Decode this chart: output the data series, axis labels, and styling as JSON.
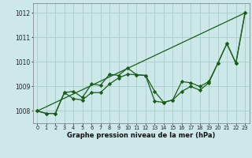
{
  "title": "Graphe pression niveau de la mer (hPa)",
  "background_color": "#cce8e8",
  "grid_color": "#aacccc",
  "line_color": "#1a5c1a",
  "xlim": [
    -0.5,
    23.5
  ],
  "ylim": [
    1007.5,
    1012.4
  ],
  "yticks": [
    1008,
    1009,
    1010,
    1011,
    1012
  ],
  "xticks": [
    0,
    1,
    2,
    3,
    4,
    5,
    6,
    7,
    8,
    9,
    10,
    11,
    12,
    13,
    14,
    15,
    16,
    17,
    18,
    19,
    20,
    21,
    22,
    23
  ],
  "trend_x": [
    0,
    23
  ],
  "trend_y": [
    1008.0,
    1012.0
  ],
  "line1_x": [
    0,
    1,
    2,
    3,
    4,
    5,
    6,
    7,
    8,
    9,
    10,
    11,
    12,
    13,
    14,
    15,
    16,
    17,
    18,
    19,
    20,
    21,
    22,
    23
  ],
  "line1_y": [
    1008.0,
    1007.9,
    1007.9,
    1008.75,
    1008.8,
    1008.55,
    1009.1,
    1009.05,
    1009.5,
    1009.45,
    1009.75,
    1009.48,
    1009.45,
    1008.4,
    1008.35,
    1008.45,
    1009.2,
    1009.15,
    1009.0,
    1009.2,
    1009.95,
    1010.75,
    1009.95,
    1012.0
  ],
  "line2_x": [
    0,
    1,
    2,
    3,
    4,
    5,
    6,
    7,
    8,
    9,
    10,
    11,
    12,
    13,
    14,
    15,
    16,
    17,
    18,
    19,
    20,
    21,
    22,
    23
  ],
  "line2_y": [
    1008.0,
    1007.9,
    1007.9,
    1008.75,
    1008.5,
    1008.45,
    1008.75,
    1008.75,
    1009.1,
    1009.35,
    1009.5,
    1009.48,
    1009.45,
    1008.8,
    1008.35,
    1008.45,
    1008.8,
    1009.0,
    1008.85,
    1009.15,
    1009.95,
    1010.75,
    1009.95,
    1012.0
  ]
}
